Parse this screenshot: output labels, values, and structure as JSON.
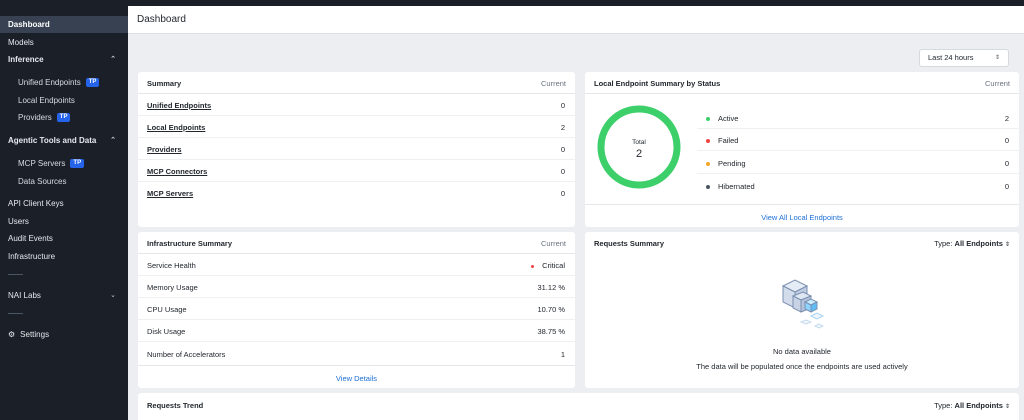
{
  "sidebar": {
    "dashboard": "Dashboard",
    "models": "Models",
    "inference": "Inference",
    "unified_endpoints": "Unified Endpoints",
    "local_endpoints": "Local Endpoints",
    "providers": "Providers",
    "agentic": "Agentic Tools and Data",
    "mcp_servers": "MCP Servers",
    "data_sources": "Data Sources",
    "api_client_keys": "API Client Keys",
    "users": "Users",
    "audit_events": "Audit Events",
    "infrastructure": "Infrastructure",
    "nai_labs": "NAI Labs",
    "settings": "Settings",
    "tp_badge": "TP"
  },
  "header": {
    "title": "Dashboard"
  },
  "time_range": {
    "value": "Last 24 hours"
  },
  "summary": {
    "title": "Summary",
    "col": "Current",
    "rows": [
      {
        "label": "Unified Endpoints",
        "value": "0"
      },
      {
        "label": "Local Endpoints",
        "value": "2"
      },
      {
        "label": "Providers",
        "value": "0"
      },
      {
        "label": "MCP Connectors",
        "value": "0"
      },
      {
        "label": "MCP Servers",
        "value": "0"
      }
    ]
  },
  "local_status": {
    "title": "Local Endpoint Summary by Status",
    "col": "Current",
    "total_label": "Total",
    "total_value": "2",
    "ring_color": "#3ccf6a",
    "rows": [
      {
        "label": "Active",
        "value": "2",
        "color": "#3ccf6a"
      },
      {
        "label": "Failed",
        "value": "0",
        "color": "#ef4444"
      },
      {
        "label": "Pending",
        "value": "0",
        "color": "#f5a623"
      },
      {
        "label": "Hibernated",
        "value": "0",
        "color": "#4b5563"
      }
    ],
    "link": "View All Local Endpoints"
  },
  "infra": {
    "title": "Infrastructure Summary",
    "col": "Current",
    "rows": [
      {
        "label": "Service Health",
        "value": "Critical",
        "dot": "#ef4444"
      },
      {
        "label": "Memory Usage",
        "value": "31.12 %"
      },
      {
        "label": "CPU Usage",
        "value": "10.70 %"
      },
      {
        "label": "Disk Usage",
        "value": "38.75 %"
      },
      {
        "label": "Number of Accelerators",
        "value": "1"
      }
    ],
    "link": "View Details"
  },
  "requests": {
    "title": "Requests Summary",
    "type_label": "Type:",
    "type_value": "All Endpoints",
    "no_data": "No data available",
    "no_data_sub": "The data will be populated once the endpoints are used actively"
  },
  "trend": {
    "title": "Requests Trend",
    "type_label": "Type:",
    "type_value": "All Endpoints"
  }
}
